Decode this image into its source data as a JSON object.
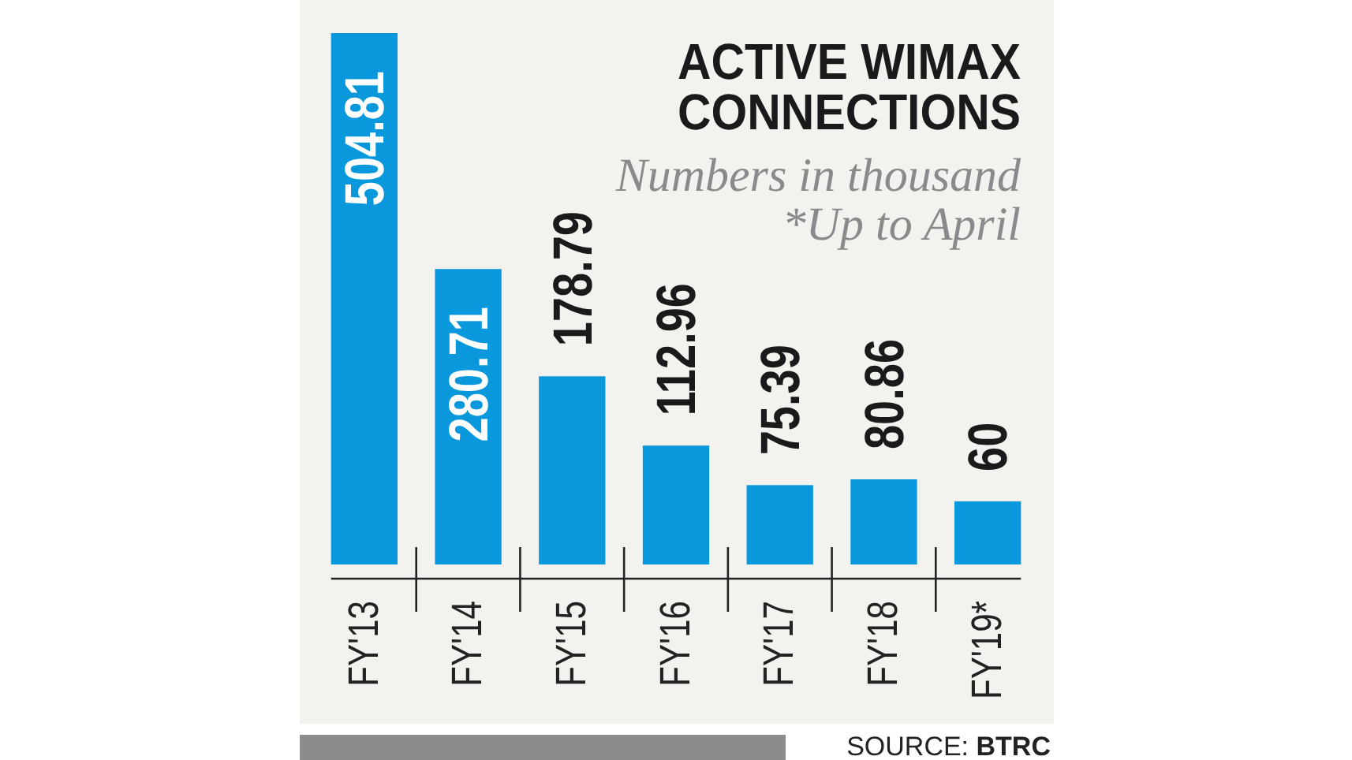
{
  "chart_data": {
    "type": "bar",
    "title": "ACTIVE WIMAX CONNECTIONS",
    "subtitle": "Numbers in thousand",
    "annotations": [
      "*Up to April",
      "SOURCE: BTRC"
    ],
    "categories": [
      "FY'13",
      "FY'14",
      "FY'15",
      "FY'16",
      "FY'17",
      "FY'18",
      "FY'19*"
    ],
    "values": [
      504.81,
      280.71,
      178.79,
      112.96,
      75.39,
      80.86,
      60
    ],
    "color": "#0a98dc",
    "data_labels": true
  }
}
